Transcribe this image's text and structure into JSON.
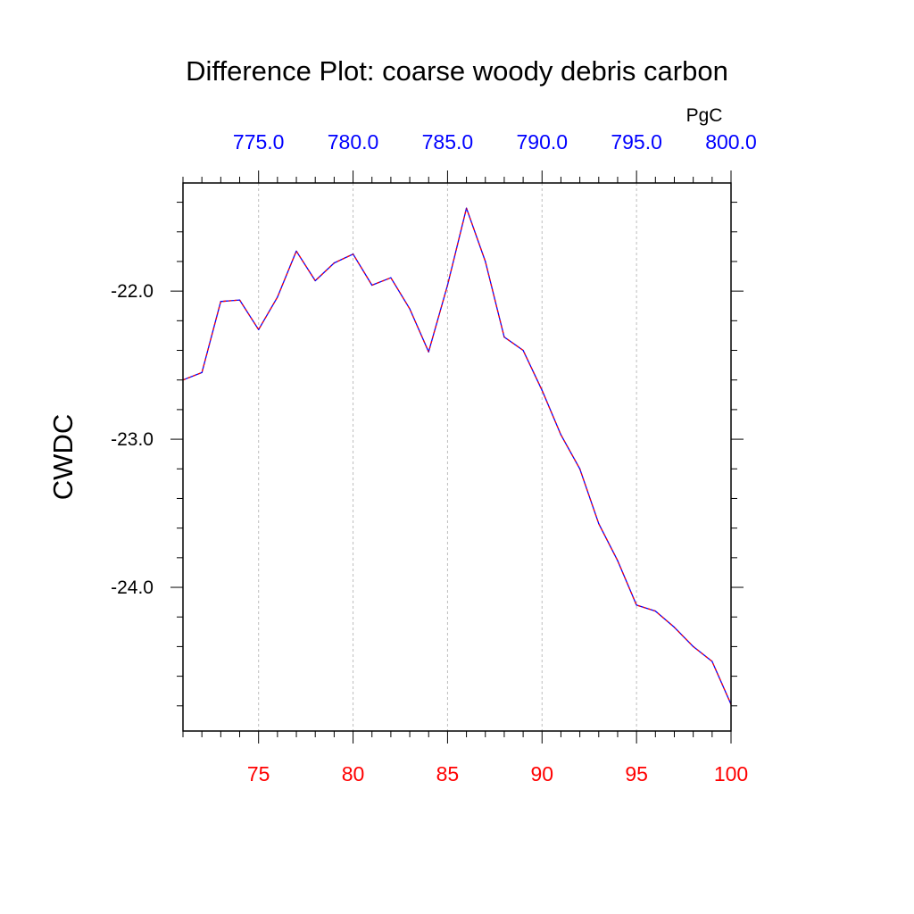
{
  "chart_data": {
    "type": "line",
    "title": "Difference Plot: coarse woody debris carbon",
    "ylabel": "CWDC",
    "top_axis_units": "PgC",
    "xlim": [
      71,
      100
    ],
    "ylim": [
      -24.97,
      -21.27
    ],
    "bottom_axis": {
      "ticks": [
        75,
        80,
        85,
        90,
        95,
        100
      ],
      "tick_labels": [
        "75",
        "80",
        "85",
        "90",
        "95",
        "100"
      ],
      "color": "#ff0000"
    },
    "top_axis": {
      "ticks": [
        75,
        80,
        85,
        90,
        95,
        100
      ],
      "tick_labels": [
        "775.0",
        "780.0",
        "785.0",
        "790.0",
        "795.0",
        "800.0"
      ],
      "color": "#0000ff"
    },
    "left_axis": {
      "ticks": [
        -24.0,
        -23.0,
        -22.0
      ],
      "tick_labels": [
        "-24.0",
        "-23.0",
        "-22.0"
      ]
    },
    "grid": "vertical dashed at major x ticks",
    "series": [
      {
        "x": [
          71,
          72,
          73,
          74,
          75,
          76,
          77,
          78,
          79,
          80,
          81,
          82,
          83,
          84,
          85,
          86,
          87,
          88,
          89,
          90,
          91,
          92,
          93,
          94,
          95,
          96,
          97,
          98,
          99,
          100
        ],
        "values": [
          -22.6,
          -22.55,
          -22.07,
          -22.06,
          -22.26,
          -22.04,
          -21.73,
          -21.93,
          -21.81,
          -21.75,
          -21.96,
          -21.91,
          -22.12,
          -22.41,
          -21.96,
          -21.44,
          -21.8,
          -22.31,
          -22.4,
          -22.67,
          -22.97,
          -23.2,
          -23.57,
          -23.82,
          -24.12,
          -24.16,
          -24.27,
          -24.4,
          -24.5,
          -24.79
        ],
        "colors": [
          "#0000ff",
          "#ff0000"
        ]
      }
    ]
  }
}
